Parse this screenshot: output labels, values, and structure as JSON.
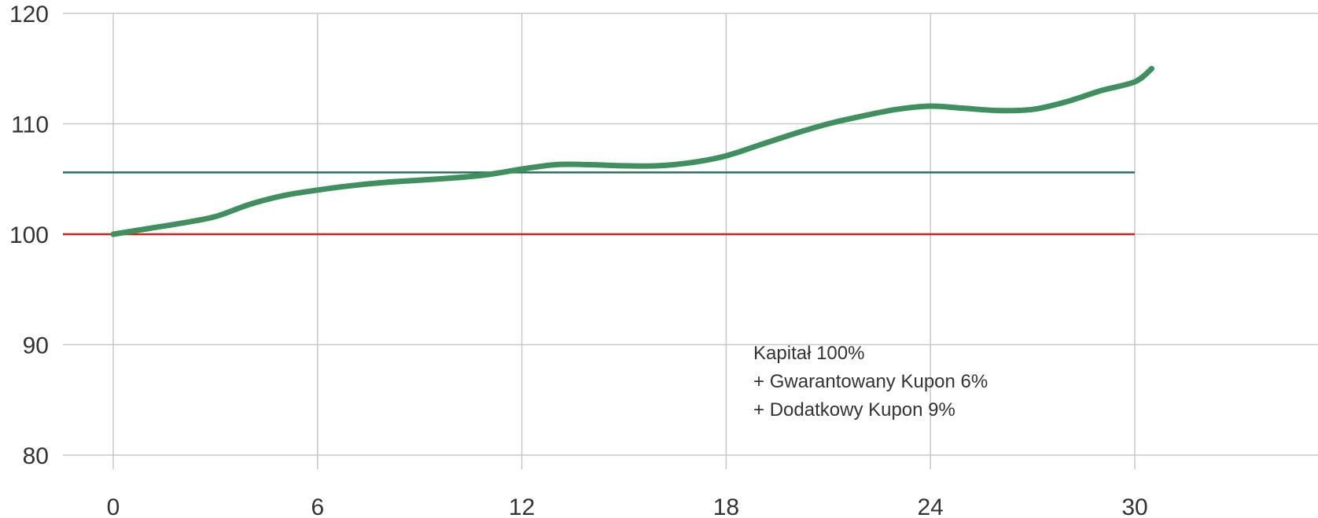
{
  "chart_data": {
    "type": "line",
    "title": "",
    "xlabel": "",
    "ylabel": "",
    "xlim": [
      0,
      35
    ],
    "ylim": [
      80,
      120
    ],
    "x_ticks": [
      "0",
      "6",
      "12",
      "18",
      "24",
      "30"
    ],
    "x_tick_values": [
      0,
      6,
      12,
      18,
      24,
      30
    ],
    "y_ticks": [
      "80",
      "90",
      "100",
      "110",
      "120"
    ],
    "y_tick_values": [
      80,
      90,
      100,
      110,
      120
    ],
    "grid": true,
    "series": [
      {
        "color": "#3f8f5f",
        "x": [
          0,
          1,
          2,
          3,
          4,
          5,
          6,
          7,
          8,
          9,
          10,
          11,
          12,
          13,
          14,
          15,
          16,
          17,
          18,
          19,
          20,
          21,
          22,
          23,
          24,
          25,
          26,
          27,
          28,
          29,
          30,
          30.5
        ],
        "y": [
          100,
          100.5,
          101,
          101.6,
          102.7,
          103.5,
          104,
          104.4,
          104.7,
          104.9,
          105.1,
          105.4,
          105.9,
          106.3,
          106.3,
          106.2,
          106.2,
          106.5,
          107.1,
          108.1,
          109.1,
          110.0,
          110.7,
          111.3,
          111.6,
          111.4,
          111.2,
          111.3,
          112.0,
          113.0,
          113.8,
          115.0
        ]
      }
    ],
    "reference_lines": [
      {
        "y": 105.6,
        "x_end": 30,
        "color": "#2d6e5a"
      },
      {
        "y": 100,
        "x_end": 30,
        "color": "#d21f1f"
      }
    ],
    "annotation": {
      "lines": [
        "Kapitał 100%",
        "+ Gwarantowany Kupon 6%",
        "+ Dodatkowy Kupon 9%"
      ],
      "x": 18.8,
      "y": 88.7
    }
  }
}
